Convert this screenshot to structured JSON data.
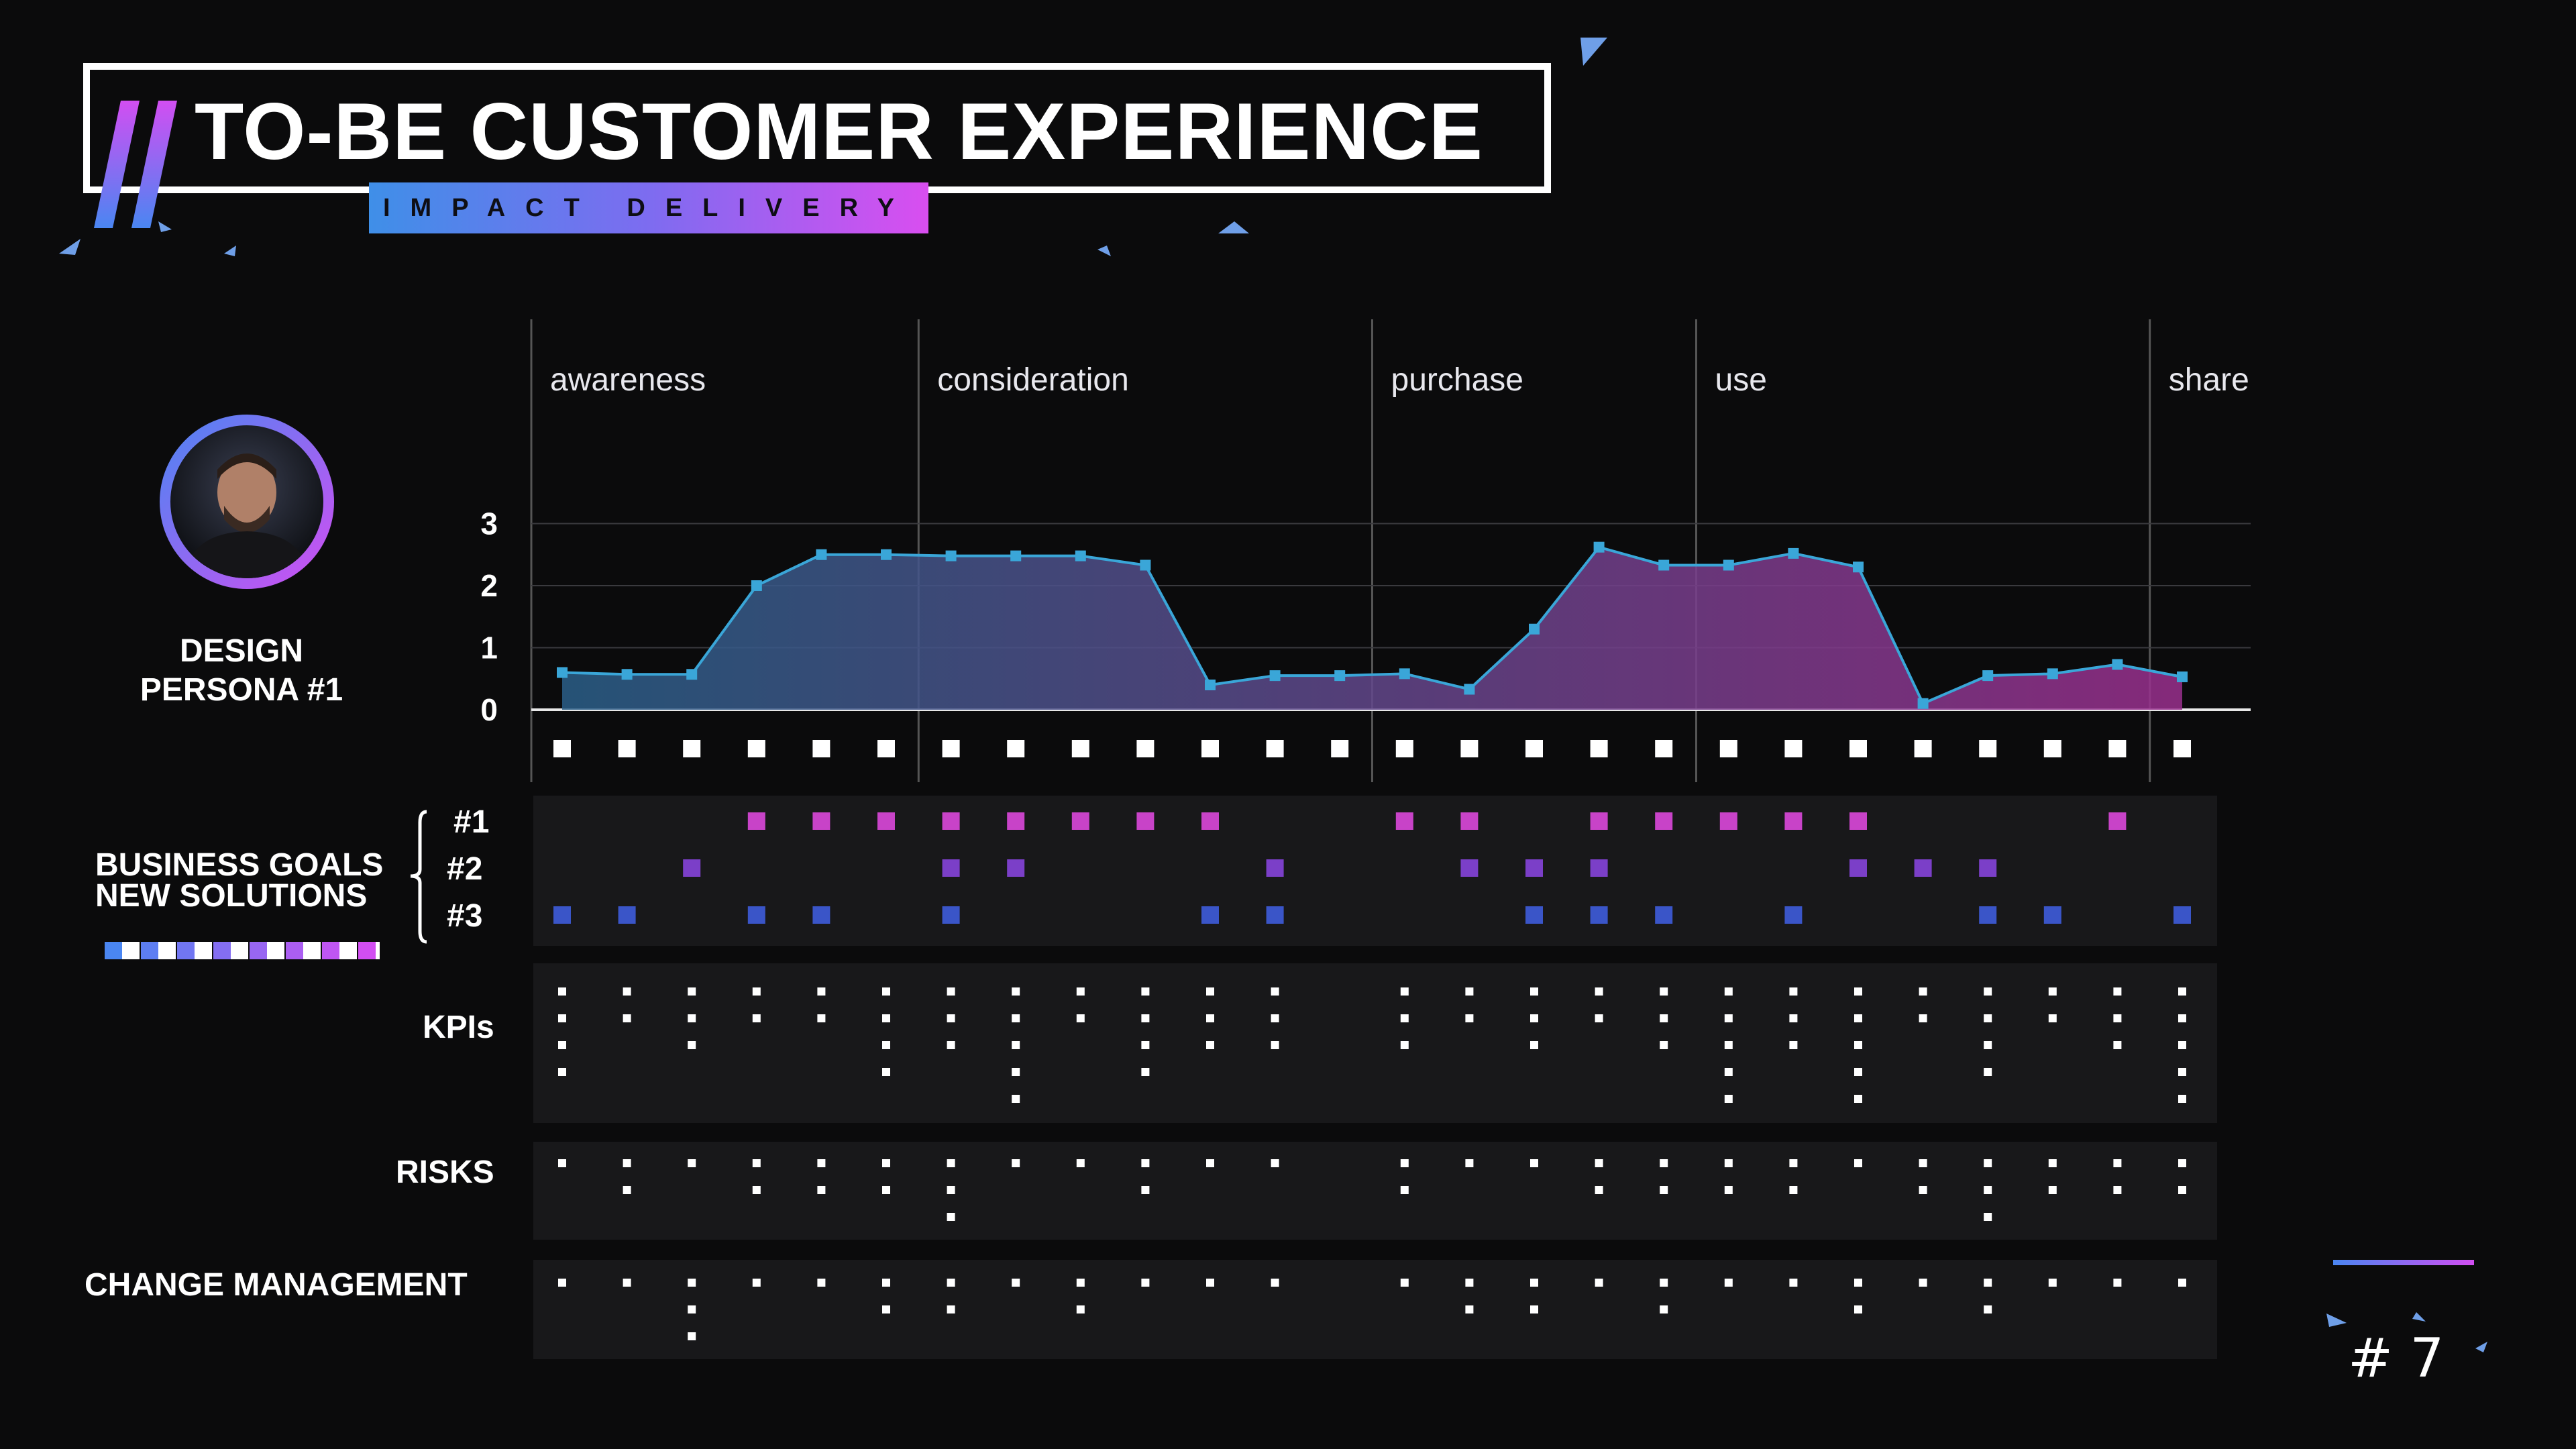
{
  "header": {
    "title": "TO-BE CUSTOMER EXPERIENCE",
    "subtitle": "IMPACT DELIVERY"
  },
  "persona": {
    "line1": "DESIGN",
    "line2": "PERSONA #1"
  },
  "labels": {
    "business_goals": "BUSINESS GOALS",
    "new_solutions": "NEW SOLUTIONS",
    "kpis": "KPIs",
    "risks": "RISKS",
    "change_management": "CHANGE MANAGEMENT"
  },
  "page_number": "# 7",
  "colors": {
    "line": "#3aa6d8",
    "gradient_start": "#2a5f88",
    "gradient_end": "#9a2f8e",
    "goal1": "#c843c8",
    "goal2": "#7b3fc8",
    "goal3": "#3a55c8"
  },
  "chart_data": {
    "type": "area",
    "stages": [
      {
        "name": "awareness",
        "start_index": 0
      },
      {
        "name": "consideration",
        "start_index": 6
      },
      {
        "name": "purchase",
        "start_index": 13
      },
      {
        "name": "use",
        "start_index": 18
      },
      {
        "name": "share",
        "start_index": 25
      }
    ],
    "y_ticks": [
      "0",
      "1",
      "2",
      "3"
    ],
    "ylim": [
      0,
      3
    ],
    "grid": true,
    "values": [
      0.6,
      0.57,
      0.57,
      2.0,
      2.5,
      2.5,
      2.48,
      2.48,
      2.48,
      2.33,
      0.4,
      0.55,
      0.55,
      0.58,
      0.33,
      1.3,
      2.62,
      2.33,
      2.33,
      2.52,
      2.3,
      0.1,
      0.55,
      0.58,
      0.73,
      0.53
    ],
    "business_goals": {
      "row_labels": [
        "#1",
        "#2",
        "#3"
      ],
      "goal1": [
        3,
        4,
        5,
        6,
        7,
        8,
        9,
        10,
        13,
        14,
        16,
        17,
        18,
        19,
        20,
        24
      ],
      "goal2": [
        2,
        6,
        7,
        11,
        14,
        15,
        16,
        20,
        21,
        22
      ],
      "goal3": [
        0,
        1,
        3,
        4,
        6,
        10,
        11,
        15,
        16,
        17,
        19,
        22,
        23,
        25
      ]
    },
    "kpis": [
      4,
      2,
      3,
      2,
      2,
      4,
      3,
      5,
      2,
      4,
      3,
      3,
      0,
      3,
      2,
      3,
      2,
      3,
      5,
      3,
      5,
      2,
      4,
      2,
      3,
      5
    ],
    "risks": [
      1,
      2,
      1,
      2,
      2,
      2,
      3,
      1,
      1,
      2,
      1,
      1,
      0,
      2,
      1,
      1,
      2,
      2,
      2,
      2,
      1,
      2,
      3,
      2,
      2,
      2
    ],
    "change_management": [
      1,
      1,
      3,
      1,
      1,
      2,
      2,
      1,
      2,
      1,
      1,
      1,
      0,
      1,
      2,
      2,
      1,
      2,
      1,
      1,
      2,
      1,
      2,
      1,
      1,
      1
    ]
  }
}
